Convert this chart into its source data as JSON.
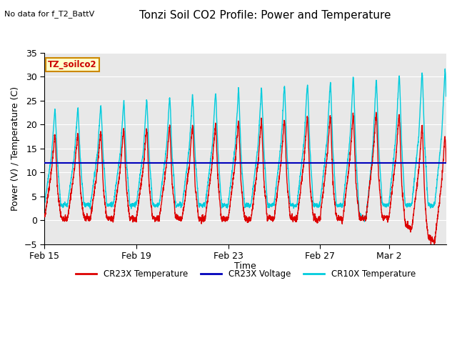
{
  "title": "Tonzi Soil CO2 Profile: Power and Temperature",
  "subtitle": "No data for f_T2_BattV",
  "ylabel": "Power (V) / Temperature (C)",
  "xlabel": "Time",
  "ylim": [
    -5,
    35
  ],
  "yticks": [
    -5,
    0,
    5,
    10,
    15,
    20,
    25,
    30,
    35
  ],
  "xtick_labels": [
    "Feb 15",
    "Feb 19",
    "Feb 23",
    "Feb 27",
    "Mar 2"
  ],
  "xtick_positions": [
    0,
    4,
    8,
    12,
    15
  ],
  "xlim": [
    0,
    17.5
  ],
  "voltage_line_y": 12,
  "voltage_color": "#0000bb",
  "cr23x_color": "#dd0000",
  "cr10x_color": "#00ccdd",
  "legend_label_cr23x_temp": "CR23X Temperature",
  "legend_label_cr23x_volt": "CR23X Voltage",
  "legend_label_cr10x_temp": "CR10X Temperature",
  "station_label": "TZ_soilco2",
  "plot_bg_color": "#e8e8e8",
  "title_fontsize": 11,
  "axis_fontsize": 9,
  "tick_fontsize": 9,
  "linewidth": 1.0
}
